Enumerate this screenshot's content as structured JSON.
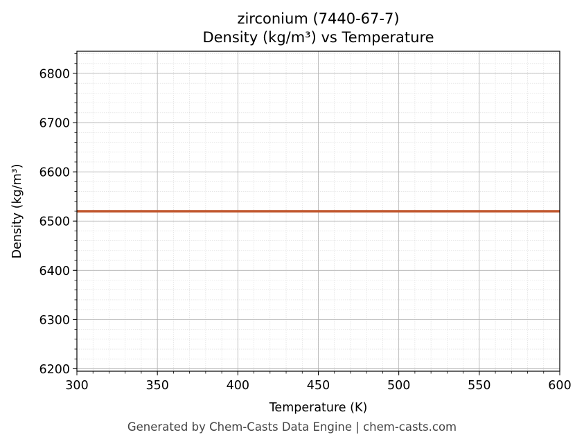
{
  "chart_data": {
    "type": "line",
    "title_line1": "zirconium (7440-67-7)",
    "title_line2": "Density (kg/m³) vs Temperature",
    "xlabel": "Temperature (K)",
    "ylabel": "Density (kg/m³)",
    "xlim": [
      300,
      600
    ],
    "ylim": [
      6195,
      6845
    ],
    "x_ticks": [
      300,
      350,
      400,
      450,
      500,
      550,
      600
    ],
    "y_ticks": [
      6200,
      6300,
      6400,
      6500,
      6600,
      6700,
      6800
    ],
    "x_minor_step": 10,
    "y_minor_step": 20,
    "grid": true,
    "series": [
      {
        "color": "#c0552b",
        "x": [
          300,
          600
        ],
        "y": [
          6520,
          6520
        ]
      }
    ]
  },
  "footer": "Generated by Chem-Casts Data Engine | chem-casts.com"
}
